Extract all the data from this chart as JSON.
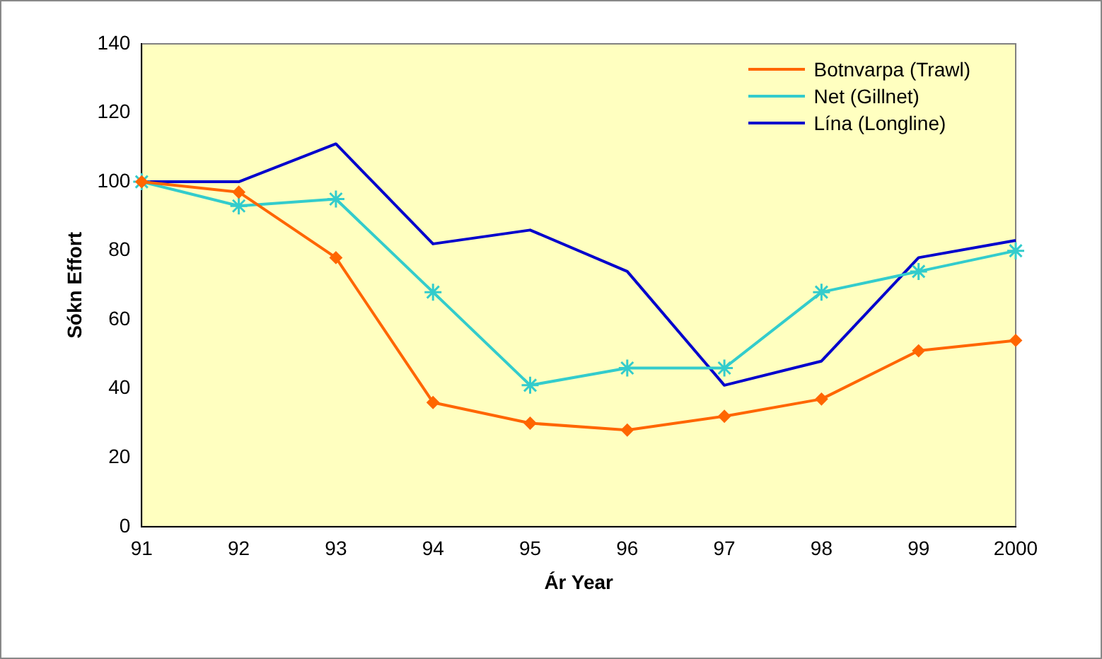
{
  "chart_data": {
    "type": "line",
    "xlabel": "Ár Year",
    "ylabel": "Sókn Effort",
    "categories": [
      "91",
      "92",
      "93",
      "94",
      "95",
      "96",
      "97",
      "98",
      "99",
      "2000"
    ],
    "series": [
      {
        "name": "Botnvarpa (Trawl)",
        "color": "#ff6600",
        "marker": "diamond",
        "values": [
          100,
          97,
          78,
          36,
          30,
          28,
          32,
          37,
          51,
          54
        ]
      },
      {
        "name": "Net (Gillnet)",
        "color": "#33cccc",
        "marker": "cross",
        "values": [
          100,
          93,
          95,
          68,
          41,
          46,
          46,
          68,
          74,
          80
        ]
      },
      {
        "name": "Lína (Longline)",
        "color": "#0000cc",
        "marker": "none",
        "values": [
          100,
          100,
          111,
          82,
          86,
          74,
          41,
          48,
          78,
          83
        ]
      }
    ],
    "ylim": [
      0,
      140
    ],
    "yticks": [
      0,
      20,
      40,
      60,
      80,
      100,
      120,
      140
    ],
    "grid": false,
    "legend": "top right",
    "line_style": "solid"
  }
}
